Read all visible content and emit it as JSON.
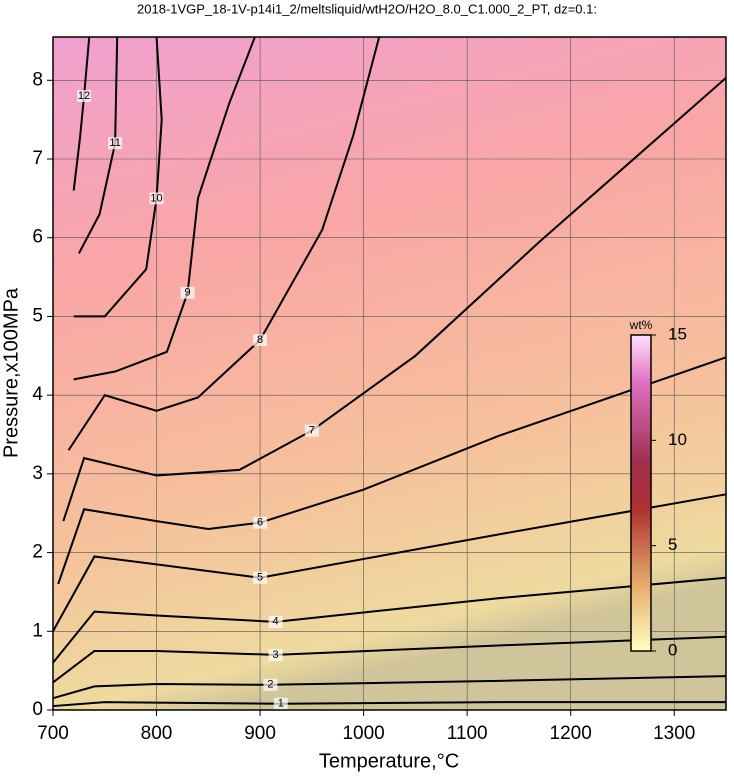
{
  "chart_data": {
    "type": "contour",
    "title": "2018-1VGP_18-1V-p14i1_2/meltsliquid/wtH2O/H2O_8.0_C1.000_2_PT, dz=0.1:",
    "x_label": "Temperature,°C",
    "y_label": "Pressure,x100MPa",
    "xlim": [
      700,
      1350
    ],
    "ylim": [
      0,
      8.55
    ],
    "xticks": [
      700,
      800,
      900,
      1000,
      1100,
      1200,
      1300
    ],
    "yticks": [
      0,
      1,
      2,
      3,
      4,
      5,
      6,
      7,
      8
    ],
    "grid": true,
    "contours": [
      {
        "level": 1,
        "x": [
          700,
          750,
          920,
          1130,
          1350
        ],
        "y": [
          0.05,
          0.1,
          0.08,
          0.1,
          0.1
        ]
      },
      {
        "level": 2,
        "x": [
          700,
          740,
          800,
          910,
          1130,
          1350
        ],
        "y": [
          0.15,
          0.3,
          0.33,
          0.32,
          0.37,
          0.43
        ]
      },
      {
        "level": 3,
        "x": [
          700,
          740,
          800,
          915,
          1130,
          1350
        ],
        "y": [
          0.35,
          0.75,
          0.75,
          0.7,
          0.82,
          0.93
        ]
      },
      {
        "level": 4,
        "x": [
          700,
          740,
          800,
          915,
          1130,
          1350
        ],
        "y": [
          0.6,
          1.25,
          1.2,
          1.12,
          1.42,
          1.68
        ]
      },
      {
        "level": 5,
        "x": [
          700,
          740,
          800,
          900,
          1130,
          1350
        ],
        "y": [
          1.0,
          1.95,
          1.85,
          1.68,
          2.23,
          2.74
        ]
      },
      {
        "level": 6,
        "x": [
          705,
          730,
          800,
          850,
          900,
          1000,
          1130,
          1350
        ],
        "y": [
          1.6,
          2.55,
          2.4,
          2.3,
          2.38,
          2.8,
          3.48,
          4.48
        ]
      },
      {
        "level": 7,
        "x": [
          710,
          730,
          800,
          880,
          950,
          1050,
          1170,
          1350
        ],
        "y": [
          2.4,
          3.2,
          2.98,
          3.05,
          3.55,
          4.5,
          5.95,
          8.03
        ]
      },
      {
        "level": 8,
        "x": [
          715,
          750,
          800,
          840,
          900,
          960,
          990,
          1015
        ],
        "y": [
          3.3,
          4.0,
          3.8,
          3.97,
          4.7,
          6.1,
          7.3,
          8.55
        ]
      },
      {
        "level": 9,
        "x": [
          720,
          760,
          810,
          830,
          840,
          870,
          895
        ],
        "y": [
          4.2,
          4.3,
          4.55,
          5.3,
          6.5,
          7.7,
          8.55
        ]
      },
      {
        "level": 10,
        "x": [
          720,
          750,
          790,
          800,
          805,
          800
        ],
        "y": [
          5.0,
          5.0,
          5.6,
          6.5,
          7.5,
          8.55
        ]
      },
      {
        "level": 11,
        "x": [
          725,
          745,
          760,
          762
        ],
        "y": [
          5.8,
          6.3,
          7.2,
          8.55
        ]
      },
      {
        "level": 12,
        "x": [
          720,
          726,
          730,
          735
        ],
        "y": [
          6.6,
          7.26,
          7.8,
          8.55
        ]
      }
    ],
    "colorbar": {
      "label": "wt%",
      "lim": [
        0,
        15
      ],
      "ticks": [
        0,
        5,
        10,
        15
      ]
    }
  }
}
